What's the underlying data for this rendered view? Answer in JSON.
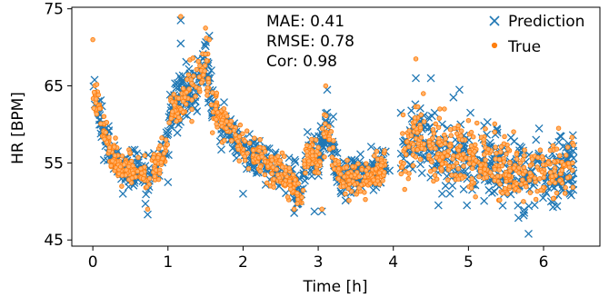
{
  "chart_data": {
    "type": "scatter",
    "xlabel": "Time [h]",
    "ylabel": "HR [BPM]",
    "xlim": [
      -0.28,
      6.75
    ],
    "ylim": [
      44.2,
      75.2
    ],
    "x_ticks": [
      0,
      1,
      2,
      3,
      4,
      5,
      6
    ],
    "x_tick_labels": [
      "0",
      "1",
      "2",
      "3",
      "4",
      "5",
      "6"
    ],
    "y_ticks": [
      45,
      55,
      65,
      75
    ],
    "y_tick_labels": [
      "45",
      "55",
      "65",
      "75"
    ],
    "grid": false,
    "legend": "top-right",
    "annotations": [
      "MAE: 0.41",
      "RMSE: 0.78",
      "Cor: 0.98"
    ],
    "series": [
      {
        "name": "Prediction",
        "marker": "x",
        "color": "#1f77b4",
        "trend": [
          [
            0.0,
            64.5
          ],
          [
            0.03,
            63.5
          ],
          [
            0.08,
            62.0
          ],
          [
            0.15,
            59.0
          ],
          [
            0.25,
            56.0
          ],
          [
            0.35,
            54.5
          ],
          [
            0.5,
            54.0
          ],
          [
            0.65,
            54.0
          ],
          [
            0.72,
            53.0
          ],
          [
            0.85,
            55.0
          ],
          [
            0.95,
            55.5
          ],
          [
            1.0,
            59.0
          ],
          [
            1.05,
            62.0
          ],
          [
            1.2,
            64.0
          ],
          [
            1.35,
            65.0
          ],
          [
            1.5,
            68.0
          ],
          [
            1.6,
            62.5
          ],
          [
            1.75,
            60.0
          ],
          [
            2.0,
            57.0
          ],
          [
            2.3,
            55.0
          ],
          [
            2.55,
            53.5
          ],
          [
            2.7,
            52.0
          ],
          [
            2.78,
            51.0
          ],
          [
            2.83,
            55.0
          ],
          [
            2.9,
            56.5
          ],
          [
            3.0,
            55.0
          ],
          [
            3.1,
            60.0
          ],
          [
            3.2,
            56.0
          ],
          [
            3.3,
            53.0
          ],
          [
            3.6,
            53.0
          ],
          [
            3.8,
            54.0
          ],
          [
            3.88,
            55.0
          ],
          [
            4.15,
            57.0
          ],
          [
            4.3,
            59.0
          ],
          [
            4.5,
            57.0
          ],
          [
            4.7,
            56.0
          ],
          [
            4.9,
            56.0
          ],
          [
            5.2,
            55.5
          ],
          [
            5.45,
            54.0
          ],
          [
            5.7,
            53.5
          ],
          [
            6.0,
            53.5
          ],
          [
            6.2,
            54.0
          ],
          [
            6.38,
            54.5
          ]
        ],
        "spread": 1.3,
        "spikes": [
          [
            1.17,
            73.5
          ],
          [
            1.17,
            70.5
          ],
          [
            1.55,
            71.5
          ],
          [
            0.37,
            53.5
          ],
          [
            0.4,
            51.0
          ],
          [
            0.73,
            48.3
          ],
          [
            0.7,
            49.7
          ],
          [
            1.0,
            52.5
          ],
          [
            2.0,
            51.0
          ],
          [
            2.68,
            48.5
          ],
          [
            2.95,
            48.7
          ],
          [
            3.05,
            48.7
          ],
          [
            3.1,
            60.5
          ],
          [
            3.12,
            64.5
          ],
          [
            3.2,
            61.0
          ],
          [
            3.95,
            54.0
          ],
          [
            4.1,
            61.5
          ],
          [
            4.3,
            66.0
          ],
          [
            4.5,
            66.0
          ],
          [
            4.55,
            61.5
          ],
          [
            4.65,
            60.0
          ],
          [
            4.7,
            58.0
          ],
          [
            4.8,
            63.5
          ],
          [
            4.88,
            64.5
          ],
          [
            4.95,
            58.0
          ],
          [
            4.98,
            49.5
          ],
          [
            4.65,
            51.0
          ],
          [
            4.6,
            49.5
          ],
          [
            5.05,
            51.5
          ],
          [
            5.8,
            45.8
          ],
          [
            5.9,
            58.0
          ],
          [
            6.1,
            50.0
          ],
          [
            6.22,
            58.5
          ],
          [
            6.3,
            57.0
          ],
          [
            6.35,
            51.0
          ]
        ]
      },
      {
        "name": "True",
        "marker": "o",
        "color": "#ff7f0e",
        "trend": [
          [
            0.0,
            64.5
          ],
          [
            0.03,
            63.5
          ],
          [
            0.08,
            62.0
          ],
          [
            0.15,
            59.0
          ],
          [
            0.25,
            56.0
          ],
          [
            0.35,
            54.5
          ],
          [
            0.5,
            54.0
          ],
          [
            0.65,
            54.0
          ],
          [
            0.72,
            53.0
          ],
          [
            0.85,
            55.0
          ],
          [
            0.95,
            55.5
          ],
          [
            1.0,
            59.0
          ],
          [
            1.05,
            62.0
          ],
          [
            1.2,
            64.0
          ],
          [
            1.35,
            65.0
          ],
          [
            1.5,
            68.0
          ],
          [
            1.6,
            62.5
          ],
          [
            1.75,
            60.0
          ],
          [
            2.0,
            57.0
          ],
          [
            2.3,
            55.0
          ],
          [
            2.55,
            53.5
          ],
          [
            2.7,
            52.0
          ],
          [
            2.78,
            51.0
          ],
          [
            2.83,
            55.0
          ],
          [
            2.9,
            56.5
          ],
          [
            3.0,
            55.0
          ],
          [
            3.1,
            60.0
          ],
          [
            3.2,
            56.0
          ],
          [
            3.3,
            53.0
          ],
          [
            3.6,
            53.0
          ],
          [
            3.8,
            54.0
          ],
          [
            3.88,
            55.0
          ],
          [
            4.15,
            57.0
          ],
          [
            4.3,
            59.0
          ],
          [
            4.5,
            57.0
          ],
          [
            4.7,
            56.0
          ],
          [
            4.9,
            56.0
          ],
          [
            5.2,
            55.5
          ],
          [
            5.45,
            54.0
          ],
          [
            5.7,
            53.5
          ],
          [
            6.0,
            53.5
          ],
          [
            6.2,
            54.0
          ],
          [
            6.38,
            54.5
          ]
        ],
        "spread": 1.2,
        "spikes": [
          [
            0.0,
            71.0
          ],
          [
            1.17,
            74.0
          ],
          [
            1.5,
            72.5
          ],
          [
            1.55,
            71.0
          ],
          [
            0.73,
            49.0
          ],
          [
            3.1,
            65.0
          ],
          [
            3.0,
            57.0
          ],
          [
            4.3,
            68.5
          ],
          [
            4.4,
            64.0
          ],
          [
            4.62,
            62.0
          ],
          [
            4.68,
            62.0
          ],
          [
            5.0,
            60.5
          ],
          [
            5.05,
            52.5
          ],
          [
            5.35,
            59.0
          ],
          [
            5.85,
            55.5
          ],
          [
            6.2,
            59.5
          ],
          [
            6.3,
            56.0
          ],
          [
            2.68,
            49.0
          ],
          [
            3.05,
            49.0
          ]
        ]
      }
    ]
  }
}
